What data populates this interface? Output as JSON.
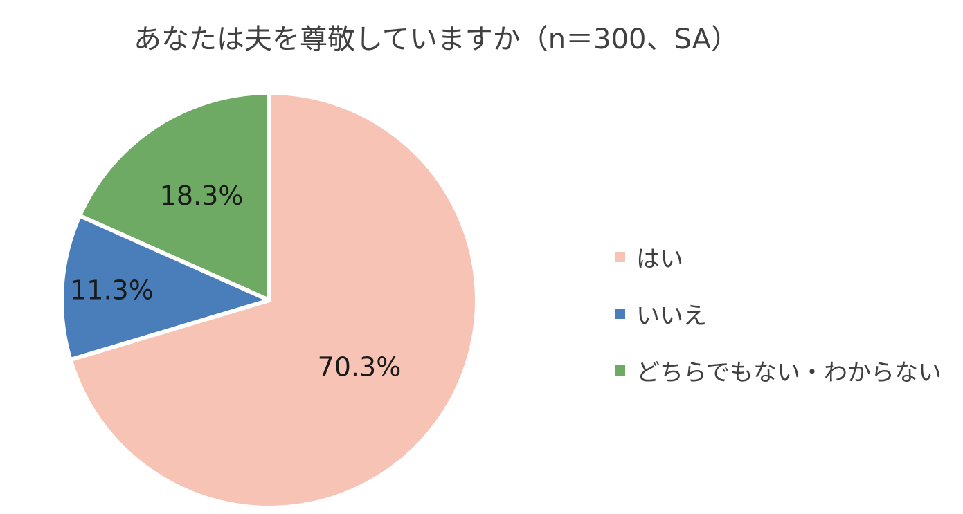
{
  "chart_data": {
    "type": "pie",
    "title": "あなたは夫を尊敬していますか（n＝300、SA）",
    "categories": [
      "はい",
      "いいえ",
      "どちらでもない・わからない"
    ],
    "values": [
      70.3,
      11.3,
      18.3
    ],
    "data_labels": [
      "70.3%",
      "11.3%",
      "18.3%"
    ],
    "colors": [
      "#F7C3B4",
      "#4A7EBB",
      "#6EAA63"
    ],
    "start_angle": "12 o'clock",
    "direction": "clockwise",
    "legend_position": "right"
  }
}
